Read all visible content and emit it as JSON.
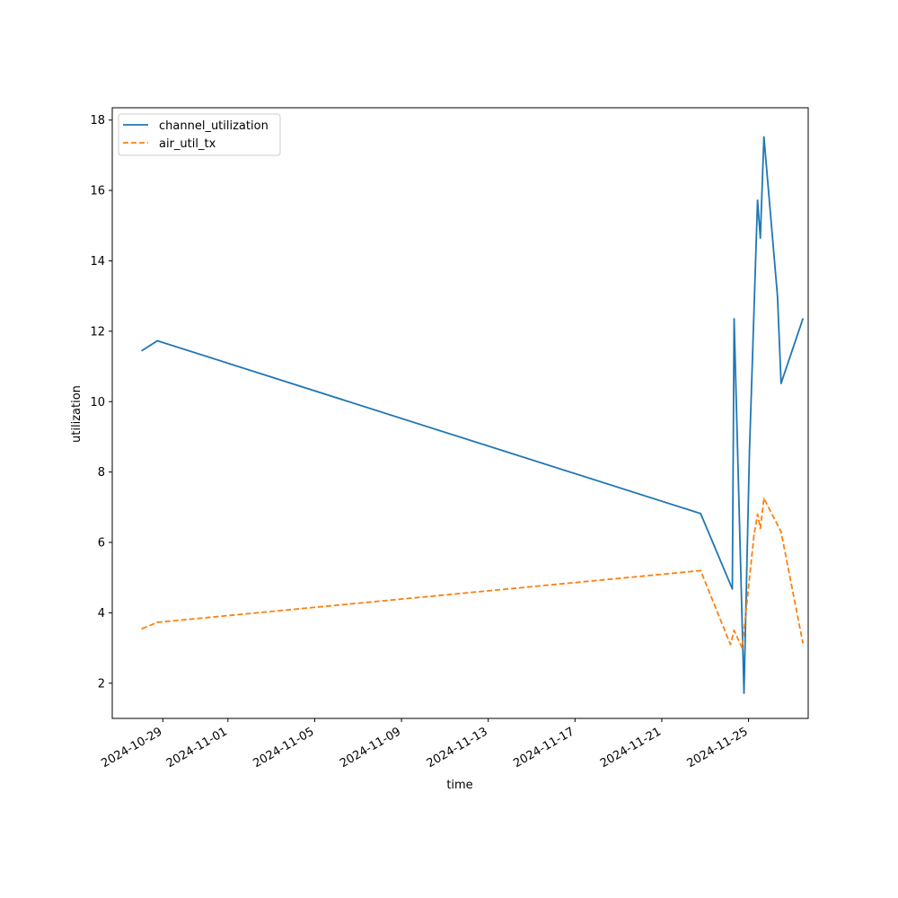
{
  "chart_data": {
    "type": "line",
    "title": "",
    "xlabel": "time",
    "ylabel": "utilization",
    "x_scale": "date",
    "xlim": [
      "2024-10-26T16:00",
      "2024-11-27T18:00"
    ],
    "ylim": [
      1.0,
      18.35
    ],
    "x_ticks": [
      "2024-10-29",
      "2024-11-01",
      "2024-11-05",
      "2024-11-09",
      "2024-11-13",
      "2024-11-17",
      "2024-11-21",
      "2024-11-25"
    ],
    "y_ticks": [
      2,
      4,
      6,
      8,
      10,
      12,
      14,
      16,
      18
    ],
    "grid": false,
    "legend_position": "top-left",
    "series": [
      {
        "name": "channel_utilization",
        "color": "#1f77b4",
        "dash": "solid",
        "points": [
          [
            "2024-10-28T01:00",
            11.45
          ],
          [
            "2024-10-28T18:00",
            11.73
          ],
          [
            "2024-11-22T19:00",
            6.82
          ],
          [
            "2024-11-24T06:00",
            4.68
          ],
          [
            "2024-11-24T08:00",
            12.35
          ],
          [
            "2024-11-24T19:00",
            1.72
          ],
          [
            "2024-11-25T01:00",
            8.6
          ],
          [
            "2024-11-25T10:00",
            15.72
          ],
          [
            "2024-11-25T13:00",
            14.65
          ],
          [
            "2024-11-25T17:00",
            17.52
          ],
          [
            "2024-11-26T08:00",
            13.0
          ],
          [
            "2024-11-26T12:00",
            10.52
          ],
          [
            "2024-11-27T12:00",
            12.35
          ]
        ]
      },
      {
        "name": "air_util_tx",
        "color": "#ff7f0e",
        "dash": "dashed",
        "points": [
          [
            "2024-10-28T01:00",
            3.55
          ],
          [
            "2024-10-28T18:00",
            3.73
          ],
          [
            "2024-11-22T19:00",
            5.2
          ],
          [
            "2024-11-24T04:00",
            3.1
          ],
          [
            "2024-11-24T08:00",
            3.5
          ],
          [
            "2024-11-24T17:00",
            3.0
          ],
          [
            "2024-11-25T06:00",
            6.2
          ],
          [
            "2024-11-25T10:00",
            6.8
          ],
          [
            "2024-11-25T13:00",
            6.4
          ],
          [
            "2024-11-25T17:00",
            7.25
          ],
          [
            "2024-11-26T08:00",
            6.5
          ],
          [
            "2024-11-26T12:00",
            6.3
          ],
          [
            "2024-11-27T12:00",
            3.15
          ]
        ]
      }
    ]
  }
}
